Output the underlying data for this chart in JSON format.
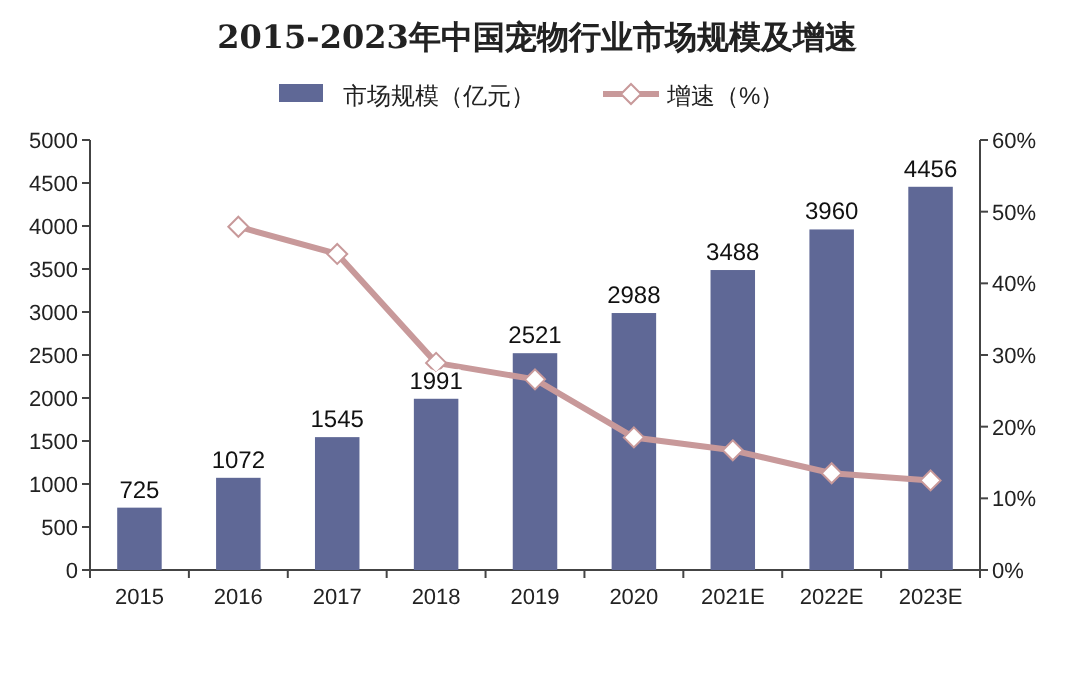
{
  "chart_data": {
    "type": "bar",
    "title": "2015-2023年中国宠物行业市场规模及增速",
    "categories": [
      "2015",
      "2016",
      "2017",
      "2018",
      "2019",
      "2020",
      "2021E",
      "2022E",
      "2023E"
    ],
    "series": [
      {
        "name": "市场规模（亿元）",
        "color": "#5f6896",
        "values": [
          725,
          1072,
          1545,
          1991,
          2521,
          2988,
          3488,
          3960,
          4456
        ],
        "value_labels": [
          "725",
          "1072",
          "1545",
          "1991",
          "2521",
          "2988",
          "3488",
          "3960",
          "4456"
        ]
      },
      {
        "name": "增速（%）",
        "type": "line",
        "axis": "y2",
        "color": "#c8999a",
        "marker": "diamond",
        "values": [
          null,
          47.9,
          44.1,
          28.9,
          26.6,
          18.5,
          16.7,
          13.5,
          12.5
        ]
      }
    ],
    "ylim": [
      0,
      5000
    ],
    "yticks": [
      0,
      500,
      1000,
      1500,
      2000,
      2500,
      3000,
      3500,
      4000,
      4500,
      5000
    ],
    "y2lim": [
      0,
      60
    ],
    "y2ticks": [
      {
        "value": 0,
        "label": "0%"
      },
      {
        "value": 10,
        "label": "10%"
      },
      {
        "value": 20,
        "label": "20%"
      },
      {
        "value": 30,
        "label": "30%"
      },
      {
        "value": 40,
        "label": "40%"
      },
      {
        "value": 50,
        "label": "50%"
      },
      {
        "value": 60,
        "label": "60%"
      }
    ],
    "legend": "top",
    "grid": false
  }
}
